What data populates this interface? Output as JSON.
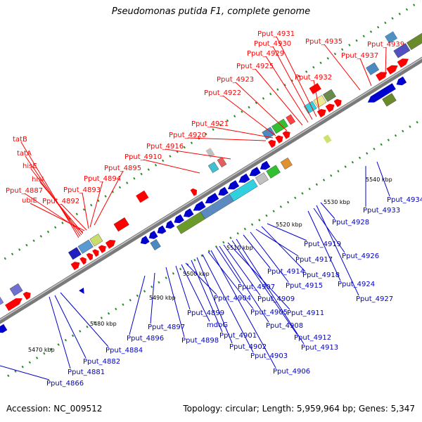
{
  "title": "Pseudomonas putida F1, complete genome",
  "footer": {
    "accession": "Accession: NC_009512",
    "summary": "Topology: circular; Length: 5,959,964 bp; Genes: 5,347"
  },
  "colors": {
    "forward_label": "#ff0000",
    "reverse_label": "#0000cc",
    "backbone": "#808080",
    "tick": "#2a8a2a"
  },
  "ticks": [
    "5470 kbp",
    "5480 kbp",
    "5490 kbp",
    "5500 kbp",
    "5510 kbp",
    "5520 kbp",
    "5530 kbp",
    "5540 kbp"
  ],
  "forward_labels": [
    "tatB",
    "tatA",
    "hisE",
    "hisI",
    "Pput_4887",
    "ubiE",
    "Pput_4892",
    "Pput_4893",
    "Pput_4894",
    "Pput_4895",
    "Pput_4910",
    "Pput_4916",
    "Pput_4920",
    "Pput_4921",
    "Pput_4922",
    "Pput_4923",
    "Pput_4925",
    "Pput_4929",
    "Pput_4930",
    "Pput_4931",
    "Pput_4932",
    "Pput_4935",
    "Pput_4937",
    "Pput_4939"
  ],
  "reverse_labels": [
    "Pput_4866",
    "Pput_4881",
    "Pput_4882",
    "Pput_4884",
    "Pput_4896",
    "Pput_4897",
    "Pput_4898",
    "mdoG",
    "Pput_4899",
    "Pput_4901",
    "Pput_4902",
    "Pput_4903",
    "Pput_4904",
    "Pput_4905",
    "Pput_4906",
    "Pput_4907",
    "Pput_4908",
    "Pput_4909",
    "Pput_4911",
    "Pput_4912",
    "Pput_4913",
    "Pput_4914",
    "Pput_4915",
    "Pput_4917",
    "Pput_4918",
    "Pput_4919",
    "Pput_4924",
    "Pput_4926",
    "Pput_4927",
    "Pput_4928",
    "Pput_4933",
    "Pput_4934"
  ]
}
